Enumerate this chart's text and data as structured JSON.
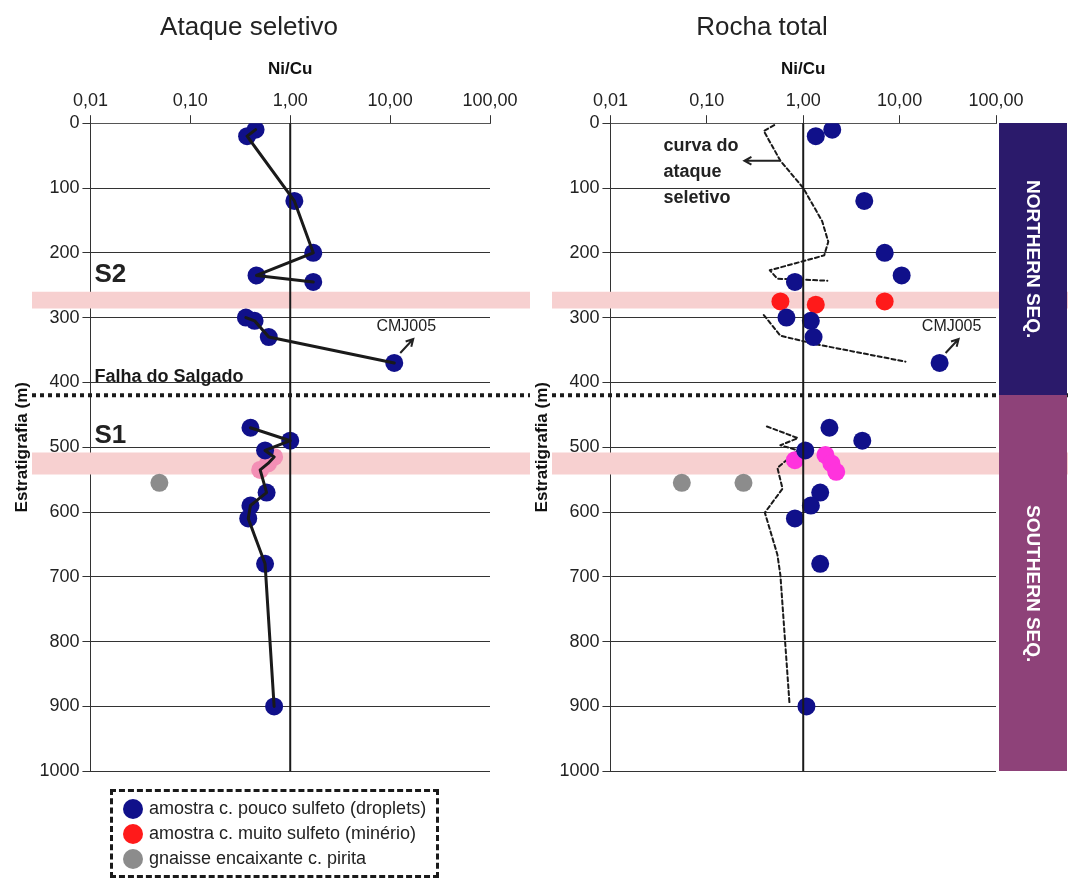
{
  "chart_data": [
    {
      "type": "scatter",
      "title": "Ataque seletivo",
      "xlabel": "Ni/Cu",
      "ylabel": "Estratigrafia (m)",
      "log": "x",
      "grid": "y",
      "marker": "circle",
      "xlim": [
        0.01,
        100
      ],
      "xticks": [
        {
          "value": 0.01,
          "label": "0,01"
        },
        {
          "value": 0.1,
          "label": "0,10"
        },
        {
          "value": 1,
          "label": "1,00"
        },
        {
          "value": 10,
          "label": "10,00"
        },
        {
          "value": 100,
          "label": "100,00"
        }
      ],
      "ylim": [
        1000,
        0
      ],
      "yticks": [
        0,
        100,
        200,
        300,
        400,
        500,
        600,
        700,
        800,
        900,
        1000
      ],
      "series": [
        {
          "type": "line",
          "color": "#1a1a1a",
          "line_style": "solid",
          "marker": "none",
          "x": [
            0.45,
            0.37,
            1.1,
            1.7,
            0.46,
            1.7,
            null,
            0.36,
            0.44,
            0.61,
            11,
            null,
            0.4,
            1.0,
            0.56,
            0.69,
            0.6,
            0.5,
            0.58,
            0.4,
            0.38,
            0.56,
            0.69
          ],
          "values": [
            10,
            20,
            120,
            200,
            235,
            245,
            null,
            300,
            305,
            330,
            370,
            null,
            470,
            490,
            505,
            515,
            525,
            535,
            570,
            590,
            610,
            680,
            900
          ]
        },
        {
          "color": "#10108a",
          "x": [
            0.45,
            0.37,
            1.1,
            1.7,
            0.46,
            1.7,
            0.36,
            0.44,
            0.61,
            11,
            0.4,
            1.0,
            0.56,
            0.58,
            0.4,
            0.38,
            0.56,
            0.69
          ],
          "values": [
            10,
            20,
            120,
            200,
            235,
            245,
            300,
            305,
            330,
            370,
            470,
            490,
            505,
            570,
            590,
            610,
            680,
            900
          ]
        },
        {
          "color": "#f38fb5",
          "x": [
            0.69,
            0.6,
            0.5
          ],
          "values": [
            515,
            525,
            535
          ]
        },
        {
          "color": "#8c8c8c",
          "x": [
            0.049
          ],
          "values": [
            555
          ]
        }
      ],
      "bands": [
        {
          "axis": "y",
          "from": 260,
          "to": 286,
          "color": "#f7d0d0"
        },
        {
          "axis": "y",
          "from": 508,
          "to": 542,
          "color": "#f7d0d0"
        }
      ],
      "ref_lines": [
        {
          "axis": "x",
          "value": 1,
          "color": "#1a1a1a",
          "line_style": "solid"
        },
        {
          "axis": "y",
          "value": 420,
          "label": "Falha do Salgado",
          "color": "#1a1a1a",
          "line_style": "dotted"
        }
      ],
      "annotations": [
        "S2",
        "S1",
        {
          "text": "CMJ005",
          "x": 11,
          "y": 370
        }
      ]
    },
    {
      "type": "scatter",
      "title": "Rocha total",
      "xlabel": "Ni/Cu",
      "ylabel": "Estratigrafia (m)",
      "log": "x",
      "grid": "y",
      "marker": "circle",
      "legend": "bottom left",
      "xlim": [
        0.01,
        100
      ],
      "xticks": [
        {
          "value": 0.01,
          "label": "0,01"
        },
        {
          "value": 0.1,
          "label": "0,10"
        },
        {
          "value": 1,
          "label": "1,00"
        },
        {
          "value": 10,
          "label": "10,00"
        },
        {
          "value": 100,
          "label": "100,00"
        }
      ],
      "ylim": [
        1000,
        0
      ],
      "yticks": [
        0,
        100,
        200,
        300,
        400,
        500,
        600,
        700,
        800,
        900,
        1000
      ],
      "series": [
        {
          "name": "amostra c. pouco sulfeto (droplets)",
          "color": "#10108a",
          "x": [
            2.0,
            1.35,
            4.3,
            7,
            10.5,
            0.82,
            0.67,
            1.2,
            1.28,
            26,
            1.87,
            4.1,
            1.05,
            1.5,
            1.2,
            0.82,
            1.5,
            1.08
          ],
          "values": [
            10,
            20,
            120,
            200,
            235,
            245,
            300,
            305,
            330,
            370,
            470,
            490,
            505,
            570,
            590,
            610,
            680,
            900
          ]
        },
        {
          "name": "amostra c. muito sulfeto (minério)",
          "color": "#ff1a1a",
          "x": [
            0.58,
            1.35,
            7
          ],
          "values": [
            275,
            280,
            275
          ]
        },
        {
          "color": "#ff33dd",
          "x": [
            0.82,
            1.7,
            1.96,
            2.2
          ],
          "values": [
            520,
            512,
            525,
            538
          ]
        },
        {
          "name": "gnaisse encaixante c. pirita",
          "color": "#8c8c8c",
          "x": [
            0.055,
            0.24
          ],
          "values": [
            555,
            555
          ]
        },
        {
          "type": "line",
          "color": "#1a1a1a",
          "line_style": "dashed",
          "marker": "none",
          "x": [
            0.5,
            0.39,
            0.58,
            1.0,
            1.57,
            1.82,
            1.65,
            0.45,
            0.54,
            1.78,
            null,
            0.39,
            0.58,
            1.35,
            11.5,
            null,
            0.42,
            0.88,
            0.58,
            0.88,
            0.54,
            0.61,
            0.4,
            0.54,
            0.58,
            0.72
          ],
          "values": [
            3,
            12,
            58,
            100,
            151,
            183,
            204,
            227,
            240,
            243,
            null,
            296,
            328,
            341,
            368,
            null,
            468,
            486,
            497,
            505,
            532,
            564,
            601,
            666,
            698,
            895
          ]
        }
      ],
      "bands": [
        {
          "axis": "y",
          "from": 260,
          "to": 286,
          "color": "#f7d0d0"
        },
        {
          "axis": "y",
          "from": 508,
          "to": 542,
          "color": "#f7d0d0"
        }
      ],
      "ref_lines": [
        {
          "axis": "x",
          "value": 1,
          "color": "#1a1a1a",
          "line_style": "solid"
        },
        {
          "axis": "y",
          "value": 420,
          "color": "#1a1a1a",
          "line_style": "dotted"
        }
      ],
      "annotations": [
        "NORTHERN SEQ.",
        "SOUTHERN SEQ.",
        {
          "text": "curva do ataque seletivo",
          "x": 0.58,
          "y": 58
        },
        {
          "text": "CMJ005",
          "x": 26,
          "y": 370
        }
      ]
    }
  ]
}
